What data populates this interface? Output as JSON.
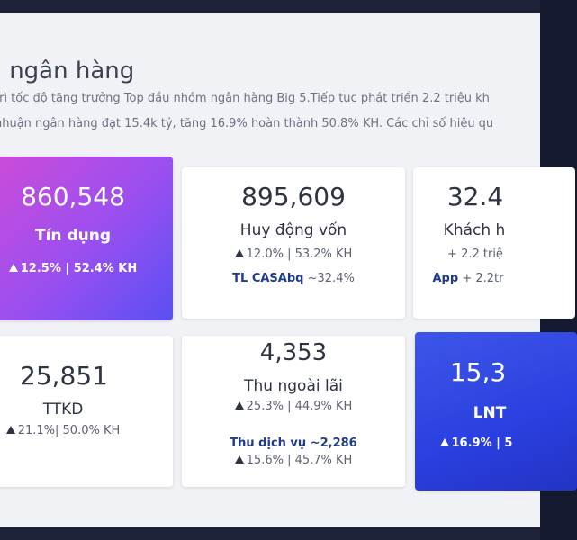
{
  "page": {
    "title": "à ngân hàng",
    "para1": "trì tốc độ tăng trưởng Top đầu nhóm ngân hàng Big 5.Tiếp tục phát triển 2.2 triệu kh",
    "para2": "nhuận ngân hàng đạt 15.4k tỷ, tăng 16.9% hoàn thành 50.8% KH. Các chỉ số hiệu qu"
  },
  "cards": {
    "tin_dung": {
      "value": "860,548",
      "label": "Tín dụng",
      "growth": "12.5% | 52.4% KH"
    },
    "huy_dong": {
      "value": "895,609",
      "label": "Huy động vốn",
      "growth": "12.0% | 53.2% KH",
      "extra_label": "TL CASAbq",
      "extra_value": "~32.4%"
    },
    "khach_hang": {
      "value": "32.4",
      "label": "Khách h",
      "growth": "+ 2.2 triệ",
      "extra_label": "App",
      "extra_value": "+ 2.2tr"
    },
    "ttkd": {
      "value": "25,851",
      "label": "TTKD",
      "growth": "21.1%| 50.0% KH"
    },
    "ngoai_lai": {
      "value": "4,353",
      "label": "Thu ngoài lãi",
      "growth": "25.3% | 44.9% KH",
      "extra_label": "Thu dịch vụ ~2,286",
      "extra_growth": "15.6% | 45.7% KH"
    },
    "lnt": {
      "value": "15,3",
      "label": "LNT",
      "growth": "16.9% | 5"
    }
  }
}
